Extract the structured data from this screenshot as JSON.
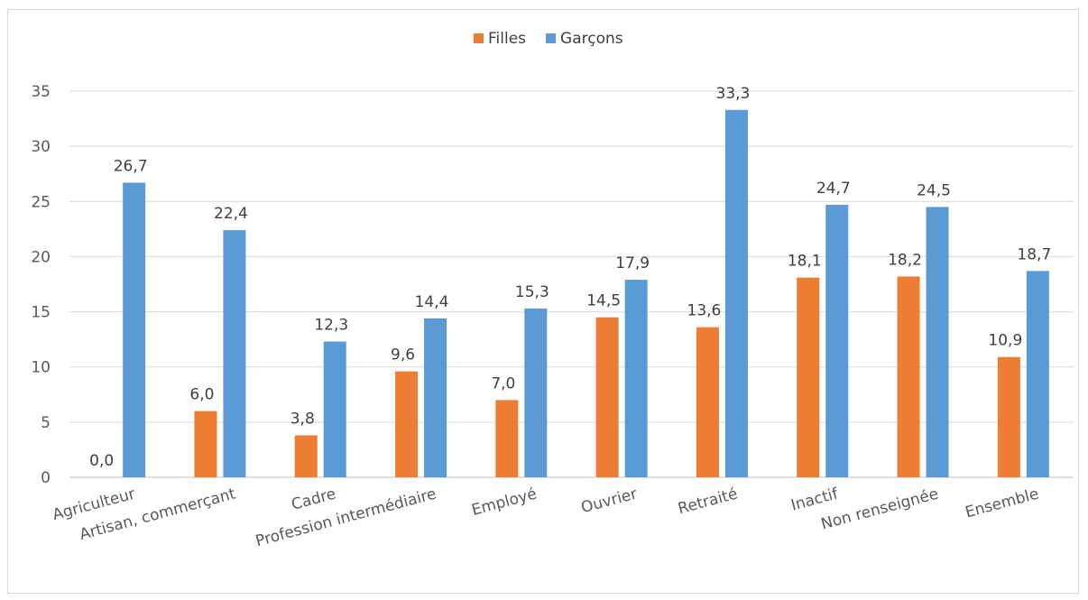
{
  "chart_data": {
    "type": "bar",
    "categories": [
      "Agriculteur",
      "Artisan, commerçant",
      "Cadre",
      "Profession intermédiaire",
      "Employé",
      "Ouvrier",
      "Retraité",
      "Inactif",
      "Non renseignée",
      "Ensemble"
    ],
    "series": [
      {
        "name": "Filles",
        "color": "#ed7d31",
        "values": [
          0.0,
          6.0,
          3.8,
          9.6,
          7.0,
          14.5,
          13.6,
          18.1,
          18.2,
          10.9
        ],
        "labels": [
          "0,0",
          "6,0",
          "3,8",
          "9,6",
          "7,0",
          "14,5",
          "13,6",
          "18,1",
          "18,2",
          "10,9"
        ]
      },
      {
        "name": "Garçons",
        "color": "#5b9bd5",
        "values": [
          26.7,
          22.4,
          12.3,
          14.4,
          15.3,
          17.9,
          33.3,
          24.7,
          24.5,
          18.7
        ],
        "labels": [
          "26,7",
          "22,4",
          "12,3",
          "14,4",
          "15,3",
          "17,9",
          "33,3",
          "24,7",
          "24,5",
          "18,7"
        ]
      }
    ],
    "ylim": [
      0,
      35
    ],
    "yticks": [
      0,
      5,
      10,
      15,
      20,
      25,
      30,
      35
    ],
    "grid": true,
    "legend": "top-center",
    "title": "",
    "xlabel": "",
    "ylabel": ""
  }
}
